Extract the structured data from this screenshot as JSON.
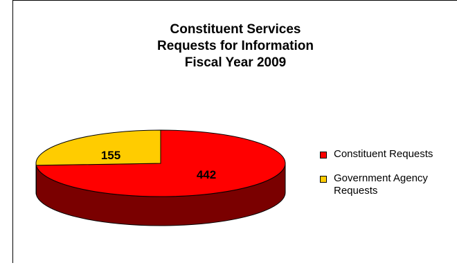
{
  "chart_data": {
    "type": "pie",
    "title_lines": [
      "Constituent Services",
      "Requests for Information",
      "Fiscal Year 2009"
    ],
    "slices": [
      {
        "label": "Constituent Requests",
        "value": 442,
        "color": "#ff0000",
        "side_color": "#7a0000"
      },
      {
        "label": "Government Agency Requests",
        "value": 155,
        "color": "#ffcc00",
        "side_color": "#806600"
      }
    ],
    "legend_position": "right",
    "three_d": true
  }
}
